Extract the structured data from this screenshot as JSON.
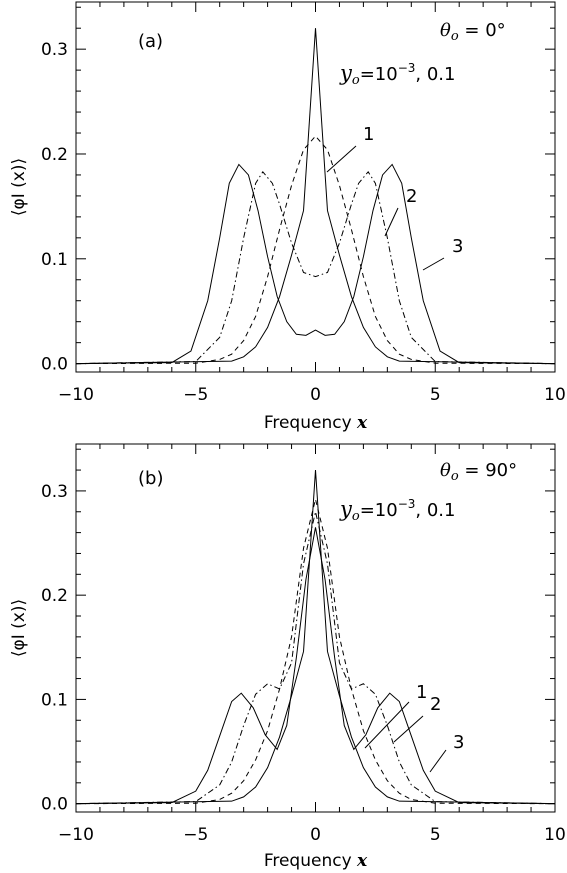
{
  "chart_data": [
    {
      "type": "line",
      "panel_label": "(a)",
      "theta_label": "θ",
      "theta_sub": "o",
      "theta_value": " = 0°",
      "y_label": "y",
      "y_sub": "o",
      "y_value": "=10",
      "y_exp": "−3",
      "y_tail": ", 0.1",
      "xlabel_text": "Frequency ",
      "xlabel_var": "x",
      "ylabel": "⟨φI (x)⟩",
      "xlim": [
        -10,
        10
      ],
      "ylim": [
        -0.008,
        0.345
      ],
      "xticks": [
        -10,
        -5,
        0,
        5,
        10
      ],
      "xtick_labels": [
        "−10",
        "−5",
        "0",
        "5",
        "10"
      ],
      "yticks": [
        0.0,
        0.1,
        0.2,
        0.3
      ],
      "ytick_labels": [
        "0.0",
        "0.1",
        "0.2",
        "0.3"
      ],
      "curve_labels": [
        "1",
        "2",
        "3"
      ],
      "series": [
        {
          "style": "solid-thick",
          "x": [
            -10,
            -3.5,
            -3.0,
            -2.5,
            -2.0,
            -1.5,
            -1.0,
            -0.5,
            0,
            0.5,
            1.0,
            1.5,
            2.0,
            2.5,
            3.0,
            3.5,
            10
          ],
          "y": [
            0.0,
            0.0024,
            0.0065,
            0.016,
            0.0345,
            0.064,
            0.1035,
            0.146,
            0.32,
            0.146,
            0.1035,
            0.064,
            0.0345,
            0.016,
            0.0065,
            0.0024,
            0.0
          ]
        },
        {
          "style": "dashed",
          "x": [
            -10,
            -5,
            -4,
            -3.5,
            -3,
            -2.5,
            -2,
            -1.5,
            -1,
            -0.5,
            0,
            0.5,
            1,
            1.5,
            2,
            2.5,
            3,
            3.5,
            4,
            5,
            10
          ],
          "y": [
            0.0,
            0.0004,
            0.004,
            0.009,
            0.022,
            0.045,
            0.083,
            0.128,
            0.17,
            0.204,
            0.217,
            0.204,
            0.17,
            0.128,
            0.083,
            0.045,
            0.022,
            0.009,
            0.004,
            0.0004,
            0.0
          ]
        },
        {
          "style": "dashdot",
          "x": [
            -10,
            -5,
            -4,
            -3.5,
            -3,
            -2.5,
            -2.2,
            -1.8,
            -1.5,
            -1,
            -0.5,
            0,
            0.5,
            1,
            1.5,
            1.8,
            2.2,
            2.5,
            3,
            3.5,
            4,
            5,
            10
          ],
          "y": [
            0.0,
            0.002,
            0.025,
            0.06,
            0.12,
            0.172,
            0.183,
            0.172,
            0.152,
            0.115,
            0.087,
            0.083,
            0.087,
            0.115,
            0.152,
            0.172,
            0.183,
            0.172,
            0.12,
            0.06,
            0.025,
            0.002,
            0.0
          ]
        },
        {
          "style": "solid",
          "x": [
            -10,
            -6,
            -5.2,
            -4.5,
            -4,
            -3.6,
            -3.2,
            -2.8,
            -2.4,
            -2,
            -1.6,
            -1.2,
            -0.8,
            -0.4,
            0,
            0.4,
            0.8,
            1.2,
            1.6,
            2,
            2.4,
            2.8,
            3.2,
            3.6,
            4,
            4.5,
            5.2,
            6,
            10
          ],
          "y": [
            0.0,
            0.001,
            0.012,
            0.06,
            0.12,
            0.172,
            0.19,
            0.18,
            0.146,
            0.102,
            0.064,
            0.04,
            0.028,
            0.027,
            0.032,
            0.027,
            0.028,
            0.04,
            0.064,
            0.102,
            0.146,
            0.18,
            0.19,
            0.172,
            0.12,
            0.06,
            0.012,
            0.001,
            0.0
          ]
        }
      ]
    },
    {
      "type": "line",
      "panel_label": "(b)",
      "theta_label": "θ",
      "theta_sub": "o",
      "theta_value": " = 90°",
      "y_label": "y",
      "y_sub": "o",
      "y_value": "=10",
      "y_exp": "−3",
      "y_tail": ", 0.1",
      "xlabel_text": "Frequency ",
      "xlabel_var": "x",
      "ylabel": "⟨φI (x)⟩",
      "xlim": [
        -10,
        10
      ],
      "ylim": [
        -0.008,
        0.345
      ],
      "xticks": [
        -10,
        -5,
        0,
        5,
        10
      ],
      "xtick_labels": [
        "−10",
        "−5",
        "0",
        "5",
        "10"
      ],
      "yticks": [
        0.0,
        0.1,
        0.2,
        0.3
      ],
      "ytick_labels": [
        "0.0",
        "0.1",
        "0.2",
        "0.3"
      ],
      "curve_labels": [
        "1",
        "2",
        "3"
      ],
      "series": [
        {
          "style": "solid-thick",
          "x": [
            -10,
            -3.5,
            -3.0,
            -2.5,
            -2.0,
            -1.5,
            -1.0,
            -0.5,
            0,
            0.5,
            1.0,
            1.5,
            2.0,
            2.5,
            3.0,
            3.5,
            10
          ],
          "y": [
            0.0,
            0.0024,
            0.0065,
            0.016,
            0.0345,
            0.064,
            0.1035,
            0.146,
            0.32,
            0.146,
            0.1035,
            0.064,
            0.0345,
            0.016,
            0.0065,
            0.0024,
            0.0
          ]
        },
        {
          "style": "dashed",
          "x": [
            -10,
            -5,
            -4,
            -3.5,
            -3,
            -2.5,
            -2,
            -1.5,
            -1,
            -0.5,
            0,
            0.5,
            1,
            1.5,
            2,
            2.5,
            3,
            3.5,
            4,
            5,
            10
          ],
          "y": [
            0.0,
            0.0004,
            0.004,
            0.01,
            0.022,
            0.042,
            0.07,
            0.11,
            0.16,
            0.245,
            0.292,
            0.245,
            0.16,
            0.11,
            0.07,
            0.042,
            0.022,
            0.01,
            0.004,
            0.0004,
            0.0
          ]
        },
        {
          "style": "dashdot",
          "x": [
            -10,
            -5,
            -4,
            -3.5,
            -3,
            -2.5,
            -2,
            -1.5,
            -1,
            -0.5,
            0,
            0.5,
            1,
            1.5,
            2,
            2.5,
            3,
            3.5,
            4,
            5,
            10
          ],
          "y": [
            0.0,
            0.002,
            0.018,
            0.04,
            0.075,
            0.105,
            0.115,
            0.11,
            0.135,
            0.23,
            0.28,
            0.23,
            0.135,
            0.11,
            0.115,
            0.105,
            0.075,
            0.04,
            0.018,
            0.002,
            0.0
          ]
        },
        {
          "style": "solid",
          "x": [
            -10,
            -6,
            -5,
            -4.5,
            -4,
            -3.5,
            -3.1,
            -2.6,
            -2.1,
            -1.6,
            -1.2,
            -0.8,
            -0.4,
            0,
            0.4,
            0.8,
            1.2,
            1.6,
            2.1,
            2.6,
            3.1,
            3.5,
            4,
            4.5,
            5,
            6,
            10
          ],
          "y": [
            0.0,
            0.001,
            0.012,
            0.032,
            0.065,
            0.098,
            0.106,
            0.092,
            0.066,
            0.052,
            0.075,
            0.14,
            0.215,
            0.265,
            0.215,
            0.14,
            0.075,
            0.052,
            0.066,
            0.092,
            0.106,
            0.098,
            0.065,
            0.032,
            0.012,
            0.001,
            0.0
          ]
        }
      ]
    }
  ]
}
